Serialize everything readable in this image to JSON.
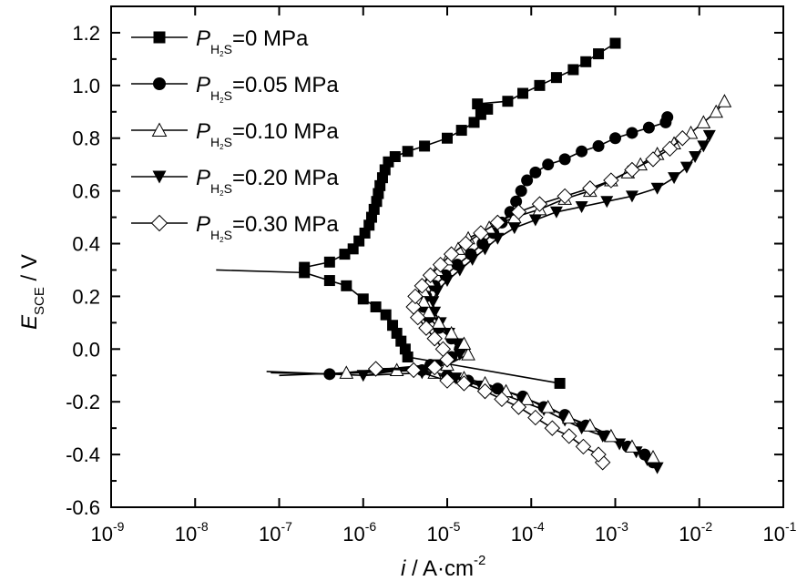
{
  "chart_data": {
    "type": "scatter",
    "title": "",
    "xlabel": {
      "main": "i",
      "rest": " / A·cm",
      "sup": "-2"
    },
    "ylabel": {
      "main": "E",
      "sub": "SCE",
      "rest": " / V"
    },
    "x_scale": "log",
    "xlim_log10": [
      -9,
      -1
    ],
    "ylim": [
      -0.6,
      1.3
    ],
    "x_ticks": [
      {
        "base": "10",
        "exp": "-9",
        "log": -9
      },
      {
        "base": "10",
        "exp": "-8",
        "log": -8
      },
      {
        "base": "10",
        "exp": "-7",
        "log": -7
      },
      {
        "base": "10",
        "exp": "-6",
        "log": -6
      },
      {
        "base": "10",
        "exp": "-5",
        "log": -5
      },
      {
        "base": "10",
        "exp": "-4",
        "log": -4
      },
      {
        "base": "10",
        "exp": "-3",
        "log": -3
      },
      {
        "base": "10",
        "exp": "-2",
        "log": -2
      },
      {
        "base": "10",
        "exp": "-1",
        "log": -1
      }
    ],
    "y_ticks": [
      {
        "label": "1.2",
        "value": 1.2
      },
      {
        "label": "1.0",
        "value": 1.0
      },
      {
        "label": "0.8",
        "value": 0.8
      },
      {
        "label": "0.6",
        "value": 0.6
      },
      {
        "label": "0.4",
        "value": 0.4
      },
      {
        "label": "0.2",
        "value": 0.2
      },
      {
        "label": "0.0",
        "value": 0.0
      },
      {
        "label": "-0.2",
        "value": -0.2
      },
      {
        "label": "-0.4",
        "value": -0.4
      },
      {
        "label": "-0.6",
        "value": -0.6
      }
    ],
    "grid": false,
    "legend_position": "top-left",
    "series": [
      {
        "name": "P_H2S=0 MPa",
        "legend": {
          "p": "P",
          "sub": "H2S",
          "value": "=0 MPa"
        },
        "marker": "square-filled",
        "line_log10_i": [
          -7.75,
          -6.62,
          -6.2,
          -5.9,
          -5.7,
          -5.5,
          -5.35,
          -5.15,
          -5.0,
          -4.9,
          -4.8,
          -4.7,
          -4.6,
          -4.5,
          -4.4,
          -4.3,
          -4.2,
          -4.1,
          -4.0,
          -3.9,
          -3.8,
          -3.6,
          -3.4,
          -3.2,
          -3.0
        ],
        "points": [
          {
            "log_i": -3.66,
            "E": -0.13
          },
          {
            "log_i": -5.47,
            "E": -0.03
          },
          {
            "log_i": -5.5,
            "E": 0.0
          },
          {
            "log_i": -5.55,
            "E": 0.03
          },
          {
            "log_i": -5.6,
            "E": 0.06
          },
          {
            "log_i": -5.65,
            "E": 0.09
          },
          {
            "log_i": -5.73,
            "E": 0.13
          },
          {
            "log_i": -5.85,
            "E": 0.16
          },
          {
            "log_i": -6.0,
            "E": 0.19
          },
          {
            "log_i": -6.2,
            "E": 0.24
          },
          {
            "log_i": -6.4,
            "E": 0.26
          },
          {
            "log_i": -6.7,
            "E": 0.29
          },
          {
            "log_i": -6.7,
            "E": 0.31
          },
          {
            "log_i": -6.4,
            "E": 0.33
          },
          {
            "log_i": -6.22,
            "E": 0.36
          },
          {
            "log_i": -6.12,
            "E": 0.38
          },
          {
            "log_i": -6.05,
            "E": 0.41
          },
          {
            "log_i": -5.98,
            "E": 0.44
          },
          {
            "log_i": -5.93,
            "E": 0.47
          },
          {
            "log_i": -5.9,
            "E": 0.5
          },
          {
            "log_i": -5.87,
            "E": 0.53
          },
          {
            "log_i": -5.84,
            "E": 0.56
          },
          {
            "log_i": -5.82,
            "E": 0.59
          },
          {
            "log_i": -5.8,
            "E": 0.62
          },
          {
            "log_i": -5.77,
            "E": 0.65
          },
          {
            "log_i": -5.74,
            "E": 0.68
          },
          {
            "log_i": -5.7,
            "E": 0.71
          },
          {
            "log_i": -5.62,
            "E": 0.73
          },
          {
            "log_i": -5.47,
            "E": 0.75
          },
          {
            "log_i": -5.27,
            "E": 0.77
          },
          {
            "log_i": -5.0,
            "E": 0.8
          },
          {
            "log_i": -4.83,
            "E": 0.83
          },
          {
            "log_i": -4.68,
            "E": 0.86
          },
          {
            "log_i": -4.6,
            "E": 0.89
          },
          {
            "log_i": -4.52,
            "E": 0.91
          },
          {
            "log_i": -4.64,
            "E": 0.93
          },
          {
            "log_i": -4.28,
            "E": 0.94
          },
          {
            "log_i": -4.1,
            "E": 0.97
          },
          {
            "log_i": -3.9,
            "E": 1.0
          },
          {
            "log_i": -3.7,
            "E": 1.03
          },
          {
            "log_i": -3.5,
            "E": 1.06
          },
          {
            "log_i": -3.35,
            "E": 1.09
          },
          {
            "log_i": -3.2,
            "E": 1.12
          },
          {
            "log_i": -3.0,
            "E": 1.16
          }
        ],
        "tail": [
          {
            "log_i": -7.75,
            "E": 0.3
          }
        ]
      },
      {
        "name": "P_H2S=0.05 MPa",
        "legend": {
          "p": "P",
          "sub": "H2S",
          "value": "=0.05 MPa"
        },
        "marker": "circle-filled",
        "points": [
          {
            "log_i": -2.55,
            "E": -0.43
          },
          {
            "log_i": -2.65,
            "E": -0.4
          },
          {
            "log_i": -2.85,
            "E": -0.37
          },
          {
            "log_i": -3.1,
            "E": -0.33
          },
          {
            "log_i": -3.35,
            "E": -0.29
          },
          {
            "log_i": -3.6,
            "E": -0.25
          },
          {
            "log_i": -3.85,
            "E": -0.22
          },
          {
            "log_i": -4.1,
            "E": -0.18
          },
          {
            "log_i": -4.4,
            "E": -0.15
          },
          {
            "log_i": -4.75,
            "E": -0.12
          },
          {
            "log_i": -5.0,
            "E": -0.1
          },
          {
            "log_i": -5.3,
            "E": -0.08
          },
          {
            "log_i": -6.4,
            "E": -0.095
          },
          {
            "log_i": -5.2,
            "E": -0.06
          },
          {
            "log_i": -4.95,
            "E": -0.03
          },
          {
            "log_i": -4.85,
            "E": 0.0
          },
          {
            "log_i": -4.95,
            "E": 0.04
          },
          {
            "log_i": -5.1,
            "E": 0.08
          },
          {
            "log_i": -5.22,
            "E": 0.12
          },
          {
            "log_i": -5.28,
            "E": 0.16
          },
          {
            "log_i": -5.25,
            "E": 0.2
          },
          {
            "log_i": -5.15,
            "E": 0.24
          },
          {
            "log_i": -5.02,
            "E": 0.28
          },
          {
            "log_i": -4.88,
            "E": 0.32
          },
          {
            "log_i": -4.72,
            "E": 0.36
          },
          {
            "log_i": -4.58,
            "E": 0.4
          },
          {
            "log_i": -4.45,
            "E": 0.44
          },
          {
            "log_i": -4.35,
            "E": 0.48
          },
          {
            "log_i": -4.25,
            "E": 0.52
          },
          {
            "log_i": -4.18,
            "E": 0.56
          },
          {
            "log_i": -4.12,
            "E": 0.6
          },
          {
            "log_i": -4.05,
            "E": 0.64
          },
          {
            "log_i": -3.95,
            "E": 0.67
          },
          {
            "log_i": -3.8,
            "E": 0.7
          },
          {
            "log_i": -3.6,
            "E": 0.72
          },
          {
            "log_i": -3.4,
            "E": 0.75
          },
          {
            "log_i": -3.2,
            "E": 0.77
          },
          {
            "log_i": -3.0,
            "E": 0.8
          },
          {
            "log_i": -2.8,
            "E": 0.82
          },
          {
            "log_i": -2.6,
            "E": 0.84
          },
          {
            "log_i": -2.4,
            "E": 0.86
          },
          {
            "log_i": -2.38,
            "E": 0.88
          }
        ],
        "tail": [
          {
            "log_i": -7.1,
            "E": -0.09
          }
        ]
      },
      {
        "name": "P_H2S=0.10 MPa",
        "legend": {
          "p": "P",
          "sub": "H2S",
          "value": "=0.10 MPa"
        },
        "marker": "triangle-up-open",
        "points": [
          {
            "log_i": -2.55,
            "E": -0.41
          },
          {
            "log_i": -2.8,
            "E": -0.37
          },
          {
            "log_i": -3.05,
            "E": -0.33
          },
          {
            "log_i": -3.3,
            "E": -0.29
          },
          {
            "log_i": -3.55,
            "E": -0.26
          },
          {
            "log_i": -3.8,
            "E": -0.22
          },
          {
            "log_i": -4.05,
            "E": -0.19
          },
          {
            "log_i": -4.3,
            "E": -0.16
          },
          {
            "log_i": -4.55,
            "E": -0.13
          },
          {
            "log_i": -4.8,
            "E": -0.11
          },
          {
            "log_i": -5.15,
            "E": -0.09
          },
          {
            "log_i": -5.6,
            "E": -0.08
          },
          {
            "log_i": -6.2,
            "E": -0.09
          },
          {
            "log_i": -5.0,
            "E": -0.06
          },
          {
            "log_i": -4.75,
            "E": -0.02
          },
          {
            "log_i": -4.8,
            "E": 0.02
          },
          {
            "log_i": -4.95,
            "E": 0.06
          },
          {
            "log_i": -5.1,
            "E": 0.1
          },
          {
            "log_i": -5.22,
            "E": 0.14
          },
          {
            "log_i": -5.28,
            "E": 0.18
          },
          {
            "log_i": -5.28,
            "E": 0.22
          },
          {
            "log_i": -5.22,
            "E": 0.26
          },
          {
            "log_i": -5.12,
            "E": 0.3
          },
          {
            "log_i": -5.0,
            "E": 0.34
          },
          {
            "log_i": -4.87,
            "E": 0.38
          },
          {
            "log_i": -4.75,
            "E": 0.42
          },
          {
            "log_i": -4.5,
            "E": 0.46
          },
          {
            "log_i": -4.2,
            "E": 0.5
          },
          {
            "log_i": -3.9,
            "E": 0.53
          },
          {
            "log_i": -3.6,
            "E": 0.57
          },
          {
            "log_i": -3.3,
            "E": 0.6
          },
          {
            "log_i": -3.05,
            "E": 0.64
          },
          {
            "log_i": -2.85,
            "E": 0.67
          },
          {
            "log_i": -2.7,
            "E": 0.7
          },
          {
            "log_i": -2.5,
            "E": 0.74
          },
          {
            "log_i": -2.3,
            "E": 0.78
          },
          {
            "log_i": -2.1,
            "E": 0.82
          },
          {
            "log_i": -1.95,
            "E": 0.86
          },
          {
            "log_i": -1.8,
            "E": 0.9
          },
          {
            "log_i": -1.7,
            "E": 0.94
          }
        ],
        "tail": [
          {
            "log_i": -7.0,
            "E": -0.1
          }
        ]
      },
      {
        "name": "P_H2S=0.20 MPa",
        "legend": {
          "p": "P",
          "sub": "H2S",
          "value": "=0.20 MPa"
        },
        "marker": "triangle-down-filled",
        "points": [
          {
            "log_i": -2.5,
            "E": -0.45
          },
          {
            "log_i": -2.62,
            "E": -0.42
          },
          {
            "log_i": -2.75,
            "E": -0.39
          },
          {
            "log_i": -2.95,
            "E": -0.36
          },
          {
            "log_i": -3.15,
            "E": -0.33
          },
          {
            "log_i": -3.4,
            "E": -0.3
          },
          {
            "log_i": -3.6,
            "E": -0.27
          },
          {
            "log_i": -3.85,
            "E": -0.23
          },
          {
            "log_i": -4.1,
            "E": -0.2
          },
          {
            "log_i": -4.35,
            "E": -0.17
          },
          {
            "log_i": -4.6,
            "E": -0.14
          },
          {
            "log_i": -4.9,
            "E": -0.11
          },
          {
            "log_i": -5.3,
            "E": -0.09
          },
          {
            "log_i": -6.0,
            "E": -0.1
          },
          {
            "log_i": -5.1,
            "E": -0.06
          },
          {
            "log_i": -4.85,
            "E": -0.02
          },
          {
            "log_i": -4.88,
            "E": 0.02
          },
          {
            "log_i": -4.98,
            "E": 0.06
          },
          {
            "log_i": -5.08,
            "E": 0.1
          },
          {
            "log_i": -5.15,
            "E": 0.14
          },
          {
            "log_i": -5.17,
            "E": 0.18
          },
          {
            "log_i": -5.12,
            "E": 0.22
          },
          {
            "log_i": -5.0,
            "E": 0.26
          },
          {
            "log_i": -4.85,
            "E": 0.3
          },
          {
            "log_i": -4.7,
            "E": 0.34
          },
          {
            "log_i": -4.55,
            "E": 0.38
          },
          {
            "log_i": -4.4,
            "E": 0.42
          },
          {
            "log_i": -4.2,
            "E": 0.46
          },
          {
            "log_i": -3.95,
            "E": 0.49
          },
          {
            "log_i": -3.7,
            "E": 0.52
          },
          {
            "log_i": -3.4,
            "E": 0.54
          },
          {
            "log_i": -3.1,
            "E": 0.56
          },
          {
            "log_i": -2.8,
            "E": 0.58
          },
          {
            "log_i": -2.5,
            "E": 0.61
          },
          {
            "log_i": -2.3,
            "E": 0.65
          },
          {
            "log_i": -2.15,
            "E": 0.69
          },
          {
            "log_i": -2.05,
            "E": 0.73
          },
          {
            "log_i": -1.95,
            "E": 0.77
          },
          {
            "log_i": -1.88,
            "E": 0.81
          }
        ],
        "tail": [
          {
            "log_i": -7.15,
            "E": -0.085
          }
        ]
      },
      {
        "name": "P_H2S=0.30 MPa",
        "legend": {
          "p": "P",
          "sub": "H2S",
          "value": "=0.30 MPa"
        },
        "marker": "diamond-open",
        "points": [
          {
            "log_i": -3.15,
            "E": -0.43
          },
          {
            "log_i": -3.2,
            "E": -0.4
          },
          {
            "log_i": -3.38,
            "E": -0.37
          },
          {
            "log_i": -3.55,
            "E": -0.33
          },
          {
            "log_i": -3.75,
            "E": -0.3
          },
          {
            "log_i": -3.95,
            "E": -0.26
          },
          {
            "log_i": -4.15,
            "E": -0.22
          },
          {
            "log_i": -4.35,
            "E": -0.19
          },
          {
            "log_i": -4.55,
            "E": -0.16
          },
          {
            "log_i": -4.8,
            "E": -0.13
          },
          {
            "log_i": -5.0,
            "E": -0.12
          },
          {
            "log_i": -5.4,
            "E": -0.08
          },
          {
            "log_i": -5.85,
            "E": -0.075
          },
          {
            "log_i": -5.15,
            "E": -0.07
          },
          {
            "log_i": -5.0,
            "E": -0.04
          },
          {
            "log_i": -5.05,
            "E": 0.0
          },
          {
            "log_i": -5.15,
            "E": 0.04
          },
          {
            "log_i": -5.25,
            "E": 0.08
          },
          {
            "log_i": -5.35,
            "E": 0.12
          },
          {
            "log_i": -5.4,
            "E": 0.16
          },
          {
            "log_i": -5.38,
            "E": 0.2
          },
          {
            "log_i": -5.3,
            "E": 0.24
          },
          {
            "log_i": -5.2,
            "E": 0.28
          },
          {
            "log_i": -5.08,
            "E": 0.32
          },
          {
            "log_i": -4.95,
            "E": 0.36
          },
          {
            "log_i": -4.78,
            "E": 0.4
          },
          {
            "log_i": -4.6,
            "E": 0.44
          },
          {
            "log_i": -4.4,
            "E": 0.48
          },
          {
            "log_i": -4.15,
            "E": 0.52
          },
          {
            "log_i": -3.9,
            "E": 0.55
          },
          {
            "log_i": -3.6,
            "E": 0.58
          },
          {
            "log_i": -3.3,
            "E": 0.61
          },
          {
            "log_i": -3.05,
            "E": 0.64
          },
          {
            "log_i": -2.8,
            "E": 0.68
          },
          {
            "log_i": -2.55,
            "E": 0.72
          },
          {
            "log_i": -2.35,
            "E": 0.76
          },
          {
            "log_i": -2.2,
            "E": 0.8
          }
        ],
        "tail": []
      }
    ]
  }
}
